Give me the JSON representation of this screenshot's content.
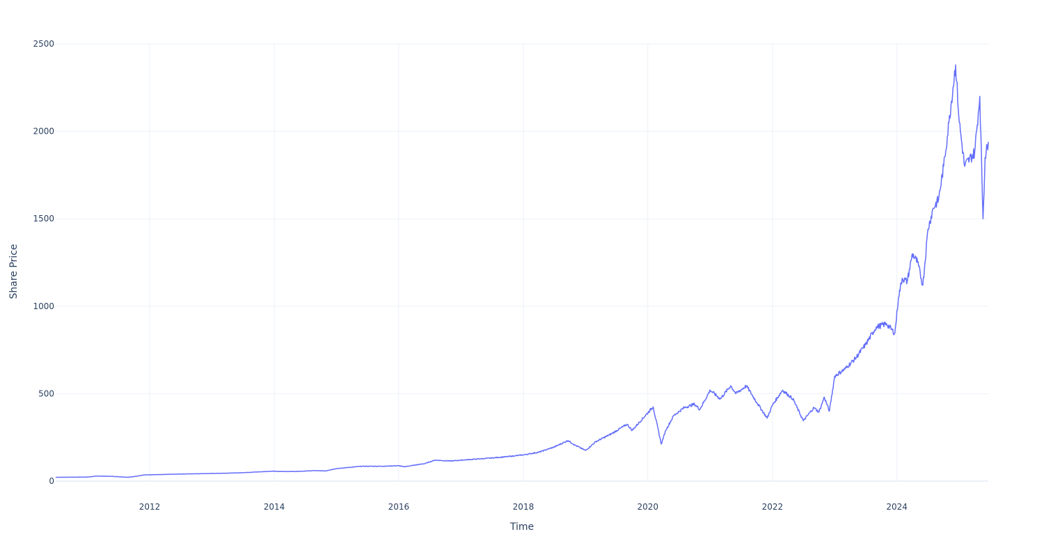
{
  "chart_data": {
    "type": "line",
    "xlabel": "Time",
    "ylabel": "Share Price",
    "xlim": [
      "2010-06-29",
      "2025-06-20"
    ],
    "ylim": [
      0,
      2500
    ],
    "x_ticks": [
      "2012",
      "2014",
      "2016",
      "2018",
      "2020",
      "2022",
      "2024"
    ],
    "y_ticks": [
      "0",
      "500",
      "1000",
      "1500",
      "2000",
      "2500"
    ],
    "grid": true,
    "legend": "none",
    "series": [
      {
        "color": "#636efa",
        "points": [
          [
            "2010-06-29",
            22
          ],
          [
            "2010-12-31",
            23
          ],
          [
            "2011-03-01",
            29
          ],
          [
            "2011-06-01",
            27
          ],
          [
            "2011-09-01",
            22
          ],
          [
            "2011-10-01",
            26
          ],
          [
            "2011-12-01",
            35
          ],
          [
            "2012-06-01",
            40
          ],
          [
            "2012-12-01",
            43
          ],
          [
            "2013-06-01",
            47
          ],
          [
            "2013-12-31",
            57
          ],
          [
            "2014-01-15",
            55
          ],
          [
            "2014-05-01",
            55
          ],
          [
            "2014-09-01",
            60
          ],
          [
            "2014-11-01",
            58
          ],
          [
            "2015-01-01",
            72
          ],
          [
            "2015-06-01",
            85
          ],
          [
            "2015-10-01",
            85
          ],
          [
            "2016-01-01",
            88
          ],
          [
            "2016-02-01",
            82
          ],
          [
            "2016-06-01",
            100
          ],
          [
            "2016-08-01",
            120
          ],
          [
            "2016-11-01",
            115
          ],
          [
            "2017-02-01",
            122
          ],
          [
            "2017-06-01",
            130
          ],
          [
            "2017-10-01",
            140
          ],
          [
            "2018-01-01",
            150
          ],
          [
            "2018-04-01",
            165
          ],
          [
            "2018-07-01",
            195
          ],
          [
            "2018-09-20",
            232
          ],
          [
            "2018-11-01",
            205
          ],
          [
            "2019-01-01",
            175
          ],
          [
            "2019-03-01",
            225
          ],
          [
            "2019-06-01",
            270
          ],
          [
            "2019-09-01",
            325
          ],
          [
            "2019-10-01",
            290
          ],
          [
            "2020-02-01",
            425
          ],
          [
            "2020-03-20",
            212
          ],
          [
            "2020-04-15",
            290
          ],
          [
            "2020-06-01",
            375
          ],
          [
            "2020-08-01",
            420
          ],
          [
            "2020-10-01",
            440
          ],
          [
            "2020-11-01",
            410
          ],
          [
            "2021-01-01",
            520
          ],
          [
            "2021-03-01",
            470
          ],
          [
            "2021-05-01",
            545
          ],
          [
            "2021-06-01",
            500
          ],
          [
            "2021-08-01",
            545
          ],
          [
            "2021-10-01",
            450
          ],
          [
            "2021-12-01",
            360
          ],
          [
            "2022-01-01",
            435
          ],
          [
            "2022-03-01",
            520
          ],
          [
            "2022-05-01",
            470
          ],
          [
            "2022-07-01",
            345
          ],
          [
            "2022-09-01",
            420
          ],
          [
            "2022-10-01",
            395
          ],
          [
            "2022-11-01",
            480
          ],
          [
            "2022-12-01",
            400
          ],
          [
            "2023-01-01",
            600
          ],
          [
            "2023-03-01",
            640
          ],
          [
            "2023-05-01",
            700
          ],
          [
            "2023-07-01",
            780
          ],
          [
            "2023-09-01",
            880
          ],
          [
            "2023-11-01",
            900
          ],
          [
            "2023-12-20",
            845
          ],
          [
            "2024-01-10",
            1050
          ],
          [
            "2024-02-01",
            1160
          ],
          [
            "2024-03-01",
            1140
          ],
          [
            "2024-04-01",
            1300
          ],
          [
            "2024-05-01",
            1250
          ],
          [
            "2024-06-01",
            1120
          ],
          [
            "2024-07-01",
            1440
          ],
          [
            "2024-08-01",
            1560
          ],
          [
            "2024-09-01",
            1610
          ],
          [
            "2024-10-01",
            1800
          ],
          [
            "2024-11-01",
            2050
          ],
          [
            "2024-12-10",
            2380
          ],
          [
            "2025-01-01",
            2050
          ],
          [
            "2025-02-01",
            1800
          ],
          [
            "2025-03-01",
            1840
          ],
          [
            "2025-04-01",
            1880
          ],
          [
            "2025-05-01",
            2200
          ],
          [
            "2025-05-20",
            1500
          ],
          [
            "2025-06-01",
            1850
          ],
          [
            "2025-06-20",
            1940
          ]
        ]
      }
    ]
  }
}
